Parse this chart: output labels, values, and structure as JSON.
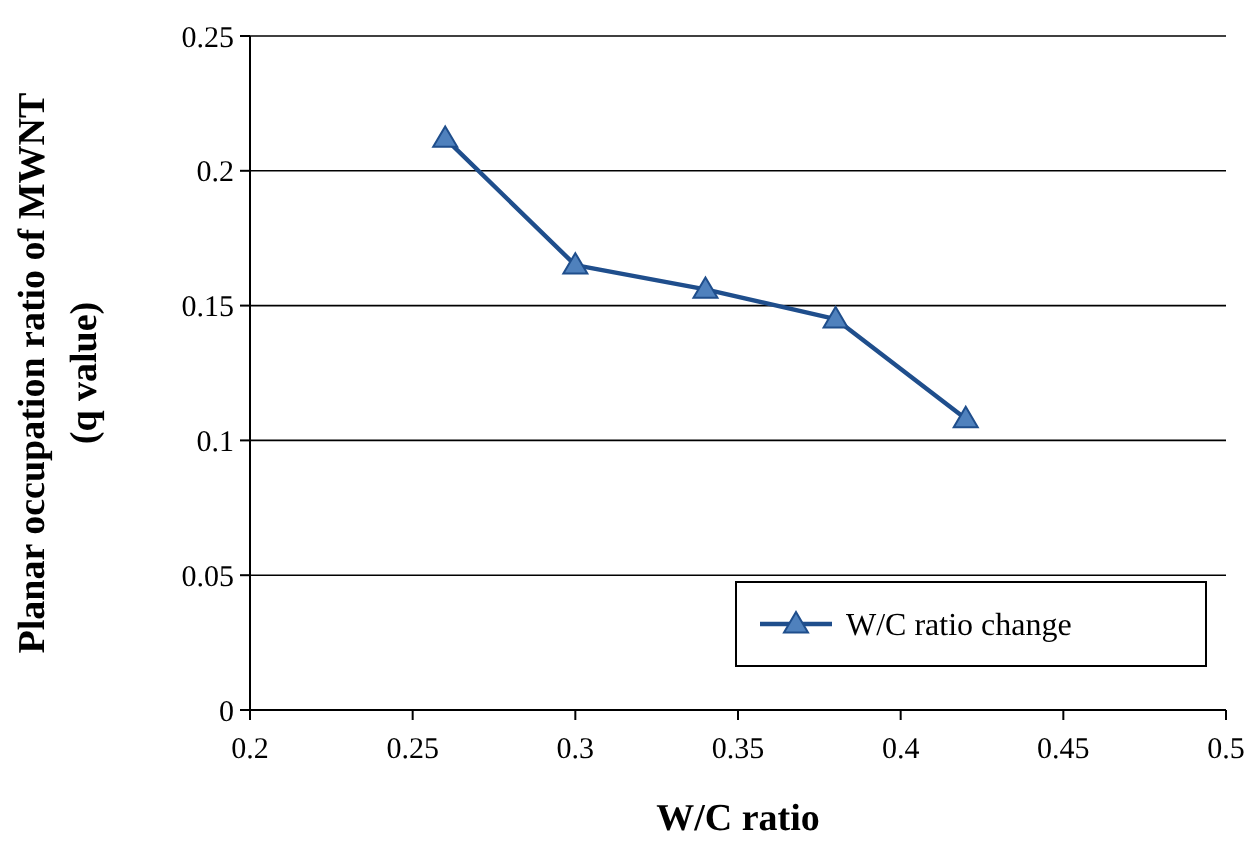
{
  "chart_data": {
    "type": "line",
    "xlabel": "W/C ratio",
    "ylabel": "Planar occupation ratio of MWNT\n(q value)",
    "xlim": [
      0.2,
      0.5
    ],
    "xticks": [
      0.2,
      0.25,
      0.3,
      0.35,
      0.4,
      0.45,
      0.5
    ],
    "ylim": [
      0,
      0.25
    ],
    "yticks": [
      0,
      0.05,
      0.1,
      0.15,
      0.2,
      0.25
    ],
    "x": [
      0.26,
      0.3,
      0.34,
      0.38,
      0.42
    ],
    "series": [
      {
        "name": "W/C ratio change",
        "color": "#1f4e8c",
        "values": [
          0.212,
          0.165,
          0.156,
          0.145,
          0.108
        ]
      }
    ],
    "marker": "triangle",
    "line_style": "solid",
    "grid": "y",
    "legend": "bottom right"
  }
}
